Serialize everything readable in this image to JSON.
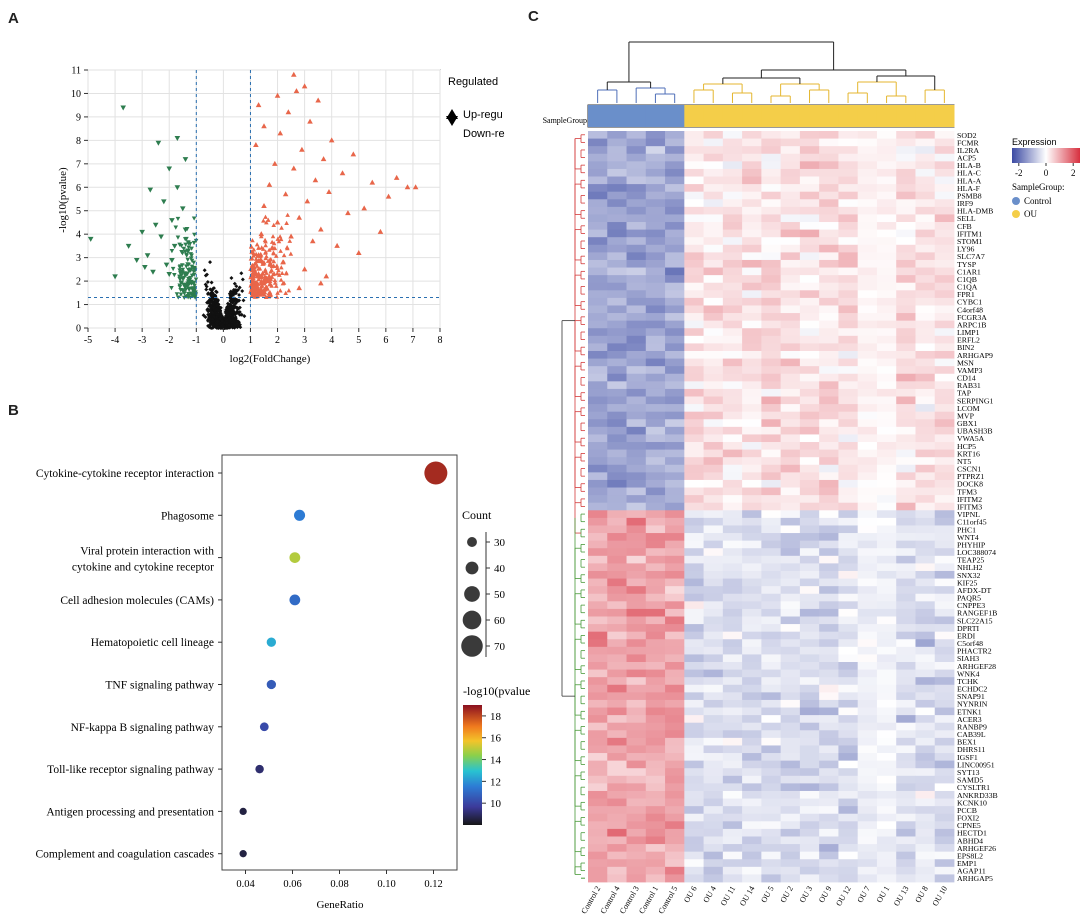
{
  "panels": {
    "a": "A",
    "b": "B",
    "c": "C"
  },
  "chart_data": [
    {
      "type": "scatter",
      "panel": "A",
      "title": "",
      "xlabel": "log2(FoldChange)",
      "ylabel": "-log10(pvalue)",
      "xlim": [
        -5,
        8
      ],
      "ylim": [
        0,
        11
      ],
      "xticks": [
        "-5",
        "-4",
        "-3",
        "-2",
        "-1",
        "0",
        "1",
        "2",
        "3",
        "4",
        "5",
        "6",
        "7",
        "8"
      ],
      "yticks": [
        "0",
        "1",
        "2",
        "3",
        "4",
        "5",
        "6",
        "7",
        "8",
        "9",
        "10",
        "11"
      ],
      "thresholds": {
        "fc": [
          -1,
          1
        ],
        "p": 1.3
      },
      "legend": {
        "title": "Regulated",
        "entries": [
          {
            "label": "Up-regu",
            "color": "#e8664a",
            "marker": "triangle-up"
          },
          {
            "label": "Down-re",
            "color": "#2e7d4f",
            "marker": "triangle-down"
          }
        ]
      },
      "series": [
        {
          "name": "Up-regulated",
          "color": "#e8664a",
          "points": [
            [
              1.1,
              1.6
            ],
            [
              1.2,
              2.4
            ],
            [
              1.3,
              3.1
            ],
            [
              1.4,
              4.0
            ],
            [
              1.5,
              5.2
            ],
            [
              1.6,
              2.0
            ],
            [
              1.7,
              6.1
            ],
            [
              1.8,
              3.4
            ],
            [
              1.9,
              7.0
            ],
            [
              2.0,
              4.5
            ],
            [
              2.1,
              8.3
            ],
            [
              2.2,
              2.8
            ],
            [
              2.3,
              5.7
            ],
            [
              2.4,
              9.2
            ],
            [
              2.5,
              3.9
            ],
            [
              2.6,
              6.8
            ],
            [
              2.7,
              10.1
            ],
            [
              2.8,
              4.7
            ],
            [
              2.9,
              7.6
            ],
            [
              3.0,
              2.5
            ],
            [
              3.1,
              5.4
            ],
            [
              3.2,
              8.8
            ],
            [
              3.3,
              3.7
            ],
            [
              3.4,
              6.3
            ],
            [
              3.5,
              9.7
            ],
            [
              3.6,
              4.2
            ],
            [
              3.7,
              7.2
            ],
            [
              3.8,
              2.2
            ],
            [
              3.9,
              5.8
            ],
            [
              4.0,
              8.0
            ],
            [
              4.2,
              3.5
            ],
            [
              4.4,
              6.6
            ],
            [
              4.6,
              4.9
            ],
            [
              4.8,
              7.4
            ],
            [
              5.0,
              3.2
            ],
            [
              5.2,
              5.1
            ],
            [
              5.5,
              6.2
            ],
            [
              5.8,
              4.1
            ],
            [
              6.1,
              5.6
            ],
            [
              6.4,
              6.4
            ],
            [
              6.8,
              6.0
            ],
            [
              7.1,
              6.0
            ],
            [
              1.2,
              7.8
            ],
            [
              1.5,
              8.6
            ],
            [
              2.0,
              9.9
            ],
            [
              2.6,
              10.8
            ],
            [
              3.0,
              10.3
            ],
            [
              1.3,
              9.5
            ],
            [
              2.8,
              1.7
            ],
            [
              3.6,
              1.9
            ]
          ]
        },
        {
          "name": "Down-regulated",
          "color": "#2e7d4f",
          "points": [
            [
              -1.1,
              1.6
            ],
            [
              -1.2,
              2.5
            ],
            [
              -1.3,
              3.3
            ],
            [
              -1.4,
              4.2
            ],
            [
              -1.5,
              5.1
            ],
            [
              -1.6,
              2.1
            ],
            [
              -1.7,
              6.0
            ],
            [
              -1.8,
              3.5
            ],
            [
              -1.9,
              4.6
            ],
            [
              -2.0,
              6.8
            ],
            [
              -2.1,
              2.7
            ],
            [
              -2.2,
              5.4
            ],
            [
              -2.3,
              3.9
            ],
            [
              -2.4,
              7.9
            ],
            [
              -2.5,
              4.4
            ],
            [
              -2.6,
              2.4
            ],
            [
              -2.7,
              5.9
            ],
            [
              -2.8,
              3.1
            ],
            [
              -3.0,
              4.1
            ],
            [
              -3.2,
              2.9
            ],
            [
              -3.5,
              3.5
            ],
            [
              -3.7,
              9.4
            ],
            [
              -4.0,
              2.2
            ],
            [
              -4.9,
              3.8
            ],
            [
              -1.4,
              7.2
            ],
            [
              -1.7,
              8.1
            ],
            [
              -2.0,
              2.3
            ],
            [
              -2.9,
              2.6
            ],
            [
              -1.3,
              1.9
            ],
            [
              -1.9,
              2.9
            ]
          ]
        }
      ]
    },
    {
      "type": "scatter",
      "panel": "B",
      "subtype": "bubble",
      "xlabel": "GeneRatio",
      "xlim": [
        0.03,
        0.13
      ],
      "xticks": [
        "0.04",
        "0.06",
        "0.08",
        "0.10",
        "0.12"
      ],
      "categories": [
        "Cytokine-cytokine receptor interaction",
        "Phagosome",
        "Viral protein interaction with cytokine and cytokine receptor",
        "Cell adhesion molecules (CAMs)",
        "Hematopoietic cell lineage",
        "TNF signaling pathway",
        "NF-kappa B signaling pathway",
        "Toll-like receptor signaling pathway",
        "Antigen processing and presentation",
        "Complement and coagulation cascades"
      ],
      "gene_ratio": [
        0.121,
        0.063,
        0.061,
        0.061,
        0.051,
        0.051,
        0.048,
        0.046,
        0.039,
        0.039
      ],
      "count": [
        75,
        34,
        33,
        33,
        28,
        28,
        26,
        25,
        21,
        21
      ],
      "neg_log10_p": [
        18.5,
        11.5,
        15.0,
        11.0,
        12.5,
        10.5,
        10.0,
        9.0,
        8.5,
        8.5
      ],
      "size_legend": {
        "title": "Count",
        "values": [
          "30",
          "40",
          "50",
          "60",
          "70"
        ]
      },
      "color_legend": {
        "title": "-log10(pvalue)",
        "ticks": [
          "10",
          "12",
          "14",
          "16",
          "18"
        ],
        "range": [
          8,
          19
        ]
      }
    },
    {
      "type": "heatmap",
      "panel": "C",
      "row_label": "SampleGroup",
      "columns": [
        "Control 2",
        "Control 4",
        "Control 3",
        "Control 1",
        "Control 5",
        "OU 6",
        "OU 4",
        "OU 11",
        "OU 14",
        "OU 5",
        "OU 2",
        "OU 3",
        "OU 9",
        "OU 12",
        "OU 7",
        "OU 1",
        "OU 13",
        "OU 8",
        "OU 10"
      ],
      "groups": [
        "Control",
        "Control",
        "Control",
        "Control",
        "Control",
        "OU",
        "OU",
        "OU",
        "OU",
        "OU",
        "OU",
        "OU",
        "OU",
        "OU",
        "OU",
        "OU",
        "OU",
        "OU",
        "OU"
      ],
      "genes_up_in_ou": [
        "SOD2",
        "FCMR",
        "IL2RA",
        "ACP5",
        "HLA-B",
        "HLA-C",
        "HLA-A",
        "HLA-F",
        "PSMB8",
        "IRF9",
        "HLA-DMB",
        "SELL",
        "CFB",
        "IFITM1",
        "STOM1",
        "LY96",
        "SLC7A7",
        "TYSP",
        "C1AR1",
        "C1QB",
        "C1QA",
        "FPR1",
        "CYBC1",
        "C4orf48",
        "FCGR3A",
        "ARPC1B",
        "LIMP1",
        "ERFL2",
        "BIN2",
        "ARHGAP9",
        "MSN",
        "VAMP3",
        "CD14",
        "RAB31",
        "TAP",
        "SERPING1",
        "LCOM",
        "MVP",
        "GBX1",
        "UBASH3B",
        "VWA5A",
        "HCP5",
        "KRT16",
        "NT5",
        "CSCN1",
        "PTPRZ1",
        "DOCK8",
        "TFM3",
        "IFITM2",
        "IFITM3"
      ],
      "genes_down_in_ou": [
        "VIPNL",
        "C11orf45",
        "PHC1",
        "WNT4",
        "PHYHIP",
        "LOC388074",
        "TEAP25",
        "NHLH2",
        "SNX32",
        "KIF25",
        "AFDX-DT",
        "PAQR5",
        "CNPPE3",
        "RANGEF1B",
        "SLC22A15",
        "DPRTI",
        "ERDI",
        "C5orf48",
        "PHACTR2",
        "SIAH3",
        "ARHGEF28",
        "WNK4",
        "TCHK",
        "ECHDC2",
        "SNAP91",
        "NYNRIN",
        "ETNK1",
        "ACER3",
        "RANBP9",
        "CAB39L",
        "BEX1",
        "DHRS11",
        "IGSF1",
        "LINC00951",
        "SYT13",
        "SAMD5",
        "CYSLTR1",
        "ANKRD33B",
        "KCNK10",
        "PCCB",
        "FOXI2",
        "CPNE5",
        "HECTD1",
        "ABHD4",
        "ARHGEF26",
        "EPS8L2",
        "EMP1",
        "AGAP11",
        "ARHGAP5"
      ],
      "expression_legend": {
        "title": "Expression",
        "ticks": [
          "-2",
          "0",
          "2"
        ],
        "range": [
          -2.5,
          2.5
        ]
      },
      "group_legend": {
        "title": "SampleGroup:",
        "entries": [
          {
            "label": "Control",
            "color": "#6a8fca"
          },
          {
            "label": "OU",
            "color": "#f4ce49"
          }
        ]
      }
    }
  ],
  "colors": {
    "up": "#e8664a",
    "down": "#2e7d4f",
    "ns": "#111111",
    "control": "#6a8fca",
    "ou": "#f4ce49",
    "threshold": "#2a6fb0",
    "heat_low": "#3b4aa3",
    "heat_mid": "#ffffff",
    "heat_high": "#d7303f"
  }
}
